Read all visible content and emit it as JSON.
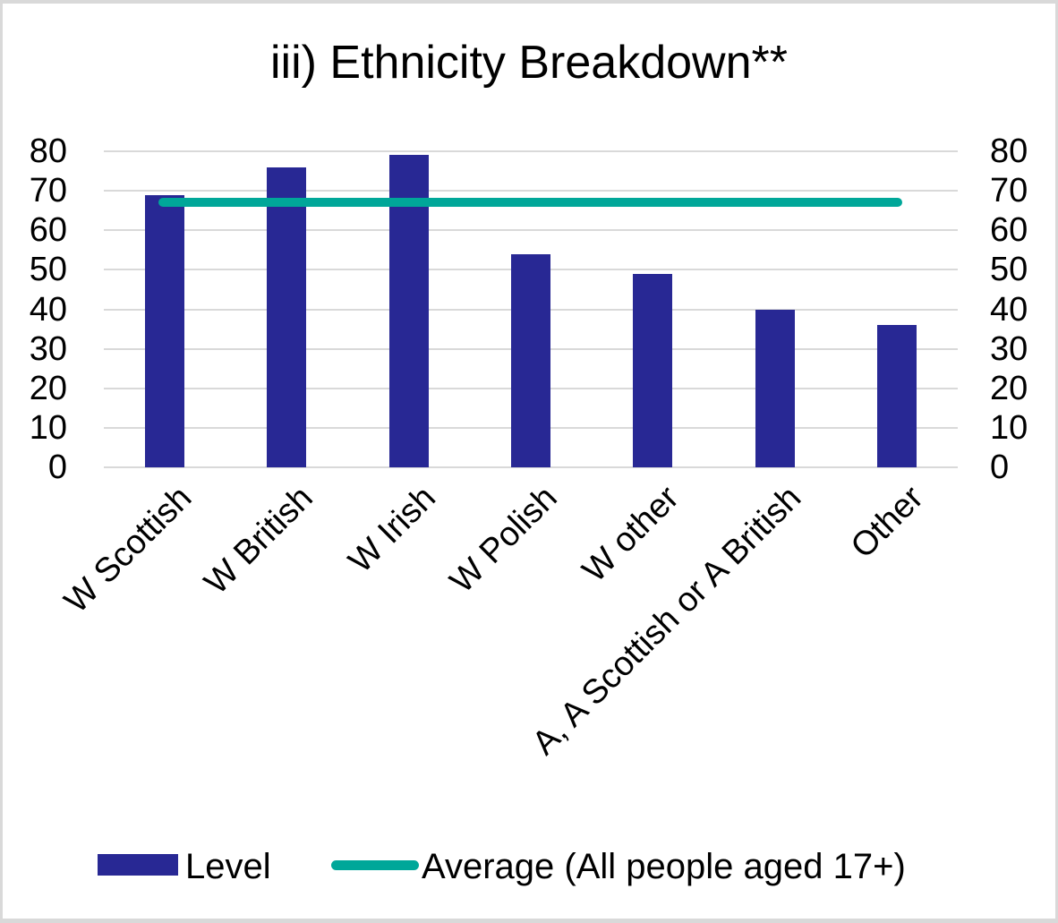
{
  "title": "iii) Ethnicity Breakdown**",
  "chart_data": {
    "type": "bar",
    "title": "iii) Ethnicity Breakdown**",
    "categories": [
      "W Scottish",
      "W British",
      "W Irish",
      "W Polish",
      "W other",
      "A, A Scottish or A British",
      "Other"
    ],
    "series": [
      {
        "name": "Level",
        "type": "bar",
        "color": "#282894",
        "values": [
          69,
          76,
          79,
          54,
          49,
          40,
          36
        ]
      },
      {
        "name": "Average (All people aged 17+)",
        "type": "line",
        "color": "#00a799",
        "value": 67
      }
    ],
    "ylim": [
      0,
      80
    ],
    "yticks": [
      80,
      70,
      60,
      50,
      40,
      30,
      20,
      10,
      0
    ],
    "dual_value_axis": true,
    "grid": true,
    "gridline_color": "#d9d9d9",
    "legend_position": "bottom",
    "background_color": "#ffffff"
  },
  "legend": {
    "level_label": "Level",
    "average_label": "Average (All people aged 17+)"
  }
}
